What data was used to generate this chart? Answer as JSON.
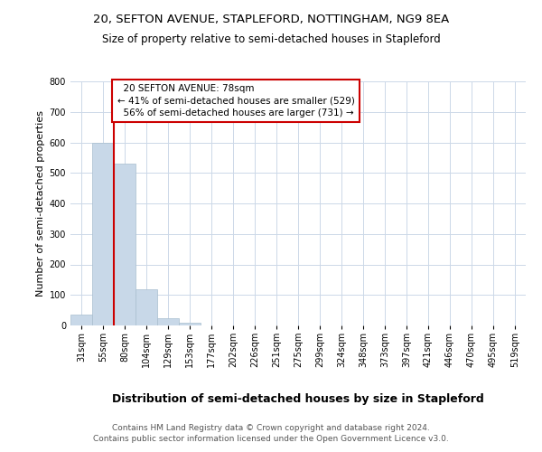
{
  "title": "20, SEFTON AVENUE, STAPLEFORD, NOTTINGHAM, NG9 8EA",
  "subtitle": "Size of property relative to semi-detached houses in Stapleford",
  "xlabel": "Distribution of semi-detached houses by size in Stapleford",
  "ylabel": "Number of semi-detached properties",
  "footer_line1": "Contains HM Land Registry data © Crown copyright and database right 2024.",
  "footer_line2": "Contains public sector information licensed under the Open Government Licence v3.0.",
  "categories": [
    "31sqm",
    "55sqm",
    "80sqm",
    "104sqm",
    "129sqm",
    "153sqm",
    "177sqm",
    "202sqm",
    "226sqm",
    "251sqm",
    "275sqm",
    "299sqm",
    "324sqm",
    "348sqm",
    "373sqm",
    "397sqm",
    "421sqm",
    "446sqm",
    "470sqm",
    "495sqm",
    "519sqm"
  ],
  "values": [
    35,
    600,
    530,
    120,
    25,
    10,
    0,
    0,
    0,
    0,
    0,
    0,
    0,
    0,
    0,
    0,
    0,
    0,
    0,
    0,
    0
  ],
  "bar_color": "#c8d8e8",
  "bar_edge_color": "#a8bece",
  "vline_color": "#cc0000",
  "vline_x": 1.5,
  "annotation_box_color": "#ffffff",
  "annotation_box_edge_color": "#cc0000",
  "property_label": "20 SEFTON AVENUE: 78sqm",
  "pct_smaller": 41,
  "pct_smaller_count": 529,
  "pct_larger": 56,
  "pct_larger_count": 731,
  "ylim": [
    0,
    800
  ],
  "yticks": [
    0,
    100,
    200,
    300,
    400,
    500,
    600,
    700,
    800
  ],
  "title_fontsize": 9.5,
  "subtitle_fontsize": 8.5,
  "xlabel_fontsize": 9,
  "ylabel_fontsize": 8,
  "tick_fontsize": 7,
  "annotation_fontsize": 7.5,
  "footer_fontsize": 6.5,
  "background_color": "#ffffff",
  "grid_color": "#ccd8e8"
}
